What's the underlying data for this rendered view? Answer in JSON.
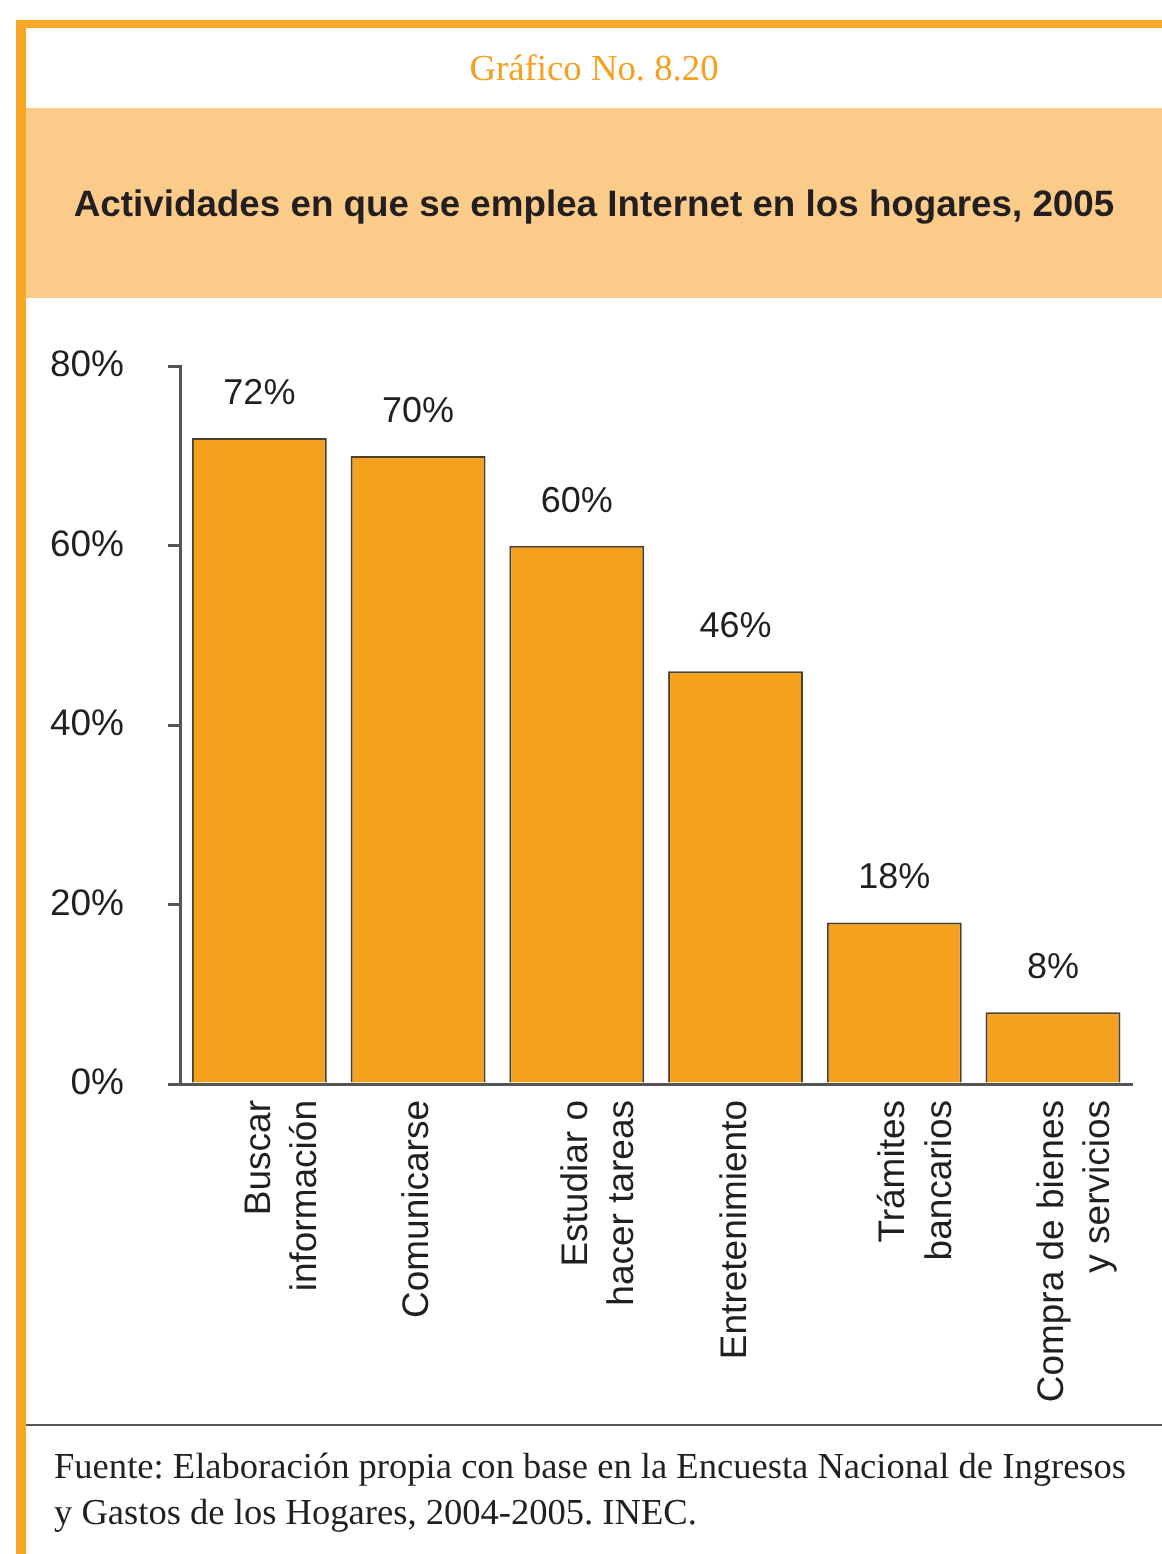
{
  "chart_data": {
    "type": "bar",
    "title": "Actividades en que se emplea Internet en los hogares, 2005",
    "categories": [
      "Buscar\ninformación",
      "Comunicarse",
      "Estudiar o\nhacer tareas",
      "Entretenimiento",
      "Trámites\nbancarios",
      "Compra de bienes\ny servicios"
    ],
    "values": [
      72,
      70,
      60,
      46,
      18,
      8
    ],
    "color": "#f4a11d",
    "value_labels": [
      "72%",
      "70%",
      "60%",
      "46%",
      "18%",
      "8%"
    ],
    "ylim": [
      0,
      80
    ],
    "yticks": [
      {
        "value": 0,
        "label": "0%"
      },
      {
        "value": 20,
        "label": "20%"
      },
      {
        "value": 40,
        "label": "40%"
      },
      {
        "value": 60,
        "label": "60%"
      },
      {
        "value": 80,
        "label": "80%"
      }
    ],
    "grid": false,
    "legend": false,
    "annotations": [
      "Gráfico No. 8.20",
      "Fuente: Elaboración propia con base en la Encuesta Nacional de Ingresos y Gastos de los Hogares, 2004-2005. INEC."
    ]
  }
}
